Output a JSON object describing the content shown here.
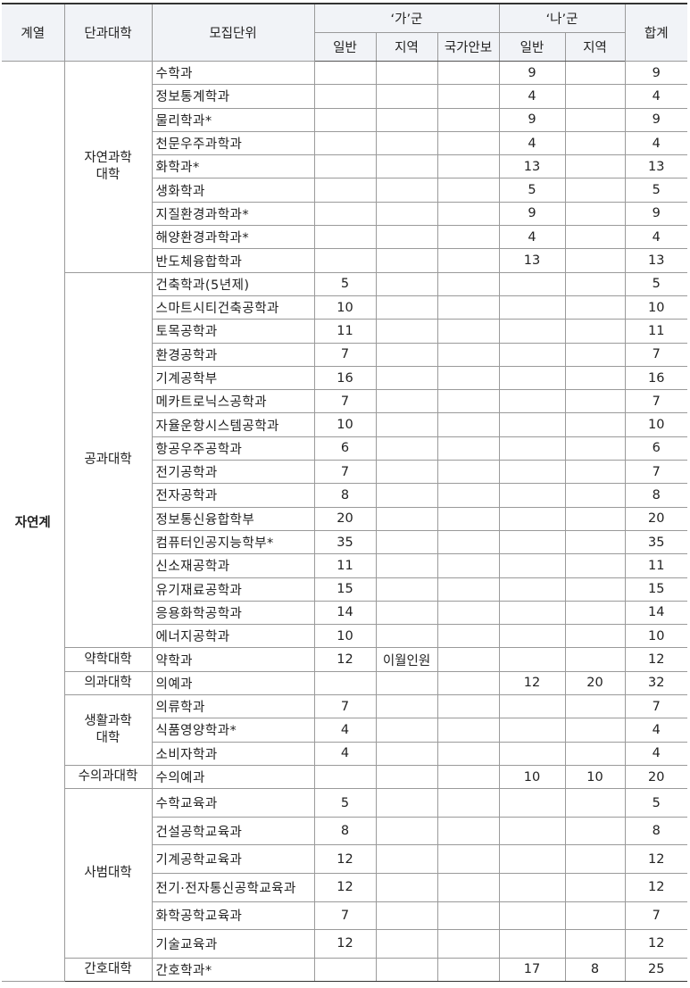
{
  "table": {
    "header": {
      "field": "계열",
      "college": "단과대학",
      "unit": "모집단위",
      "ga": "‘가’군",
      "na": "‘나’군",
      "ga_general": "일반",
      "ga_region": "지역",
      "ga_security": "국가안보",
      "na_general": "일반",
      "na_region": "지역",
      "total": "합계"
    },
    "field": "자연계",
    "groups": [
      {
        "college": "자연과학\n대학",
        "units": [
          {
            "unit": "수학과",
            "na_general": 9,
            "total": 9
          },
          {
            "unit": "정보통계학과",
            "na_general": 4,
            "total": 4
          },
          {
            "unit": "물리학과*",
            "na_general": 9,
            "total": 9
          },
          {
            "unit": "천문우주과학과",
            "na_general": 4,
            "total": 4
          },
          {
            "unit": "화학과*",
            "na_general": 13,
            "total": 13
          },
          {
            "unit": "생화학과",
            "na_general": 5,
            "total": 5
          },
          {
            "unit": "지질환경과학과*",
            "na_general": 9,
            "total": 9
          },
          {
            "unit": "해양환경과학과*",
            "na_general": 4,
            "total": 4
          },
          {
            "unit": "반도체융합학과",
            "na_general": 13,
            "total": 13
          }
        ]
      },
      {
        "college": "공과대학",
        "units": [
          {
            "unit": "건축학과(5년제)",
            "ga_general": 5,
            "total": 5
          },
          {
            "unit": "스마트시티건축공학과",
            "ga_general": 10,
            "total": 10
          },
          {
            "unit": "토목공학과",
            "ga_general": 11,
            "total": 11
          },
          {
            "unit": "환경공학과",
            "ga_general": 7,
            "total": 7
          },
          {
            "unit": "기계공학부",
            "ga_general": 16,
            "total": 16
          },
          {
            "unit": "메카트로닉스공학과",
            "ga_general": 7,
            "total": 7
          },
          {
            "unit": "자율운항시스템공학과",
            "ga_general": 10,
            "total": 10
          },
          {
            "unit": "항공우주공학과",
            "ga_general": 6,
            "total": 6
          },
          {
            "unit": "전기공학과",
            "ga_general": 7,
            "total": 7
          },
          {
            "unit": "전자공학과",
            "ga_general": 8,
            "total": 8
          },
          {
            "unit": "정보통신융합학부",
            "ga_general": 20,
            "total": 20
          },
          {
            "unit": "컴퓨터인공지능학부*",
            "ga_general": 35,
            "total": 35
          },
          {
            "unit": "신소재공학과",
            "ga_general": 11,
            "total": 11
          },
          {
            "unit": "유기재료공학과",
            "ga_general": 15,
            "total": 15
          },
          {
            "unit": "응용화학공학과",
            "ga_general": 14,
            "total": 14
          },
          {
            "unit": "에너지공학과",
            "ga_general": 10,
            "total": 10
          }
        ]
      },
      {
        "college": "약학대학",
        "units": [
          {
            "unit": "약학과",
            "ga_general": 12,
            "ga_region": "이월인원",
            "total": 12
          }
        ]
      },
      {
        "college": "의과대학",
        "units": [
          {
            "unit": "의예과",
            "na_general": 12,
            "na_region": 20,
            "total": 32
          }
        ]
      },
      {
        "college": "생활과학\n대학",
        "units": [
          {
            "unit": "의류학과",
            "ga_general": 7,
            "total": 7
          },
          {
            "unit": "식품영양학과*",
            "ga_general": 4,
            "total": 4
          },
          {
            "unit": "소비자학과",
            "ga_general": 4,
            "total": 4
          }
        ]
      },
      {
        "college": "수의과대학",
        "units": [
          {
            "unit": "수의예과",
            "na_general": 10,
            "na_region": 10,
            "total": 20
          }
        ]
      },
      {
        "college": "사범대학",
        "units": [
          {
            "unit": "수학교육과",
            "ga_general": 5,
            "total": 5
          },
          {
            "unit": "건설공학교육과",
            "ga_general": 8,
            "total": 8
          },
          {
            "unit": "기계공학교육과",
            "ga_general": 12,
            "total": 12
          },
          {
            "unit": "전기·전자통신공학교육과",
            "ga_general": 12,
            "total": 12
          },
          {
            "unit": "화학공학교육과",
            "ga_general": 7,
            "total": 7
          },
          {
            "unit": "기술교육과",
            "ga_general": 12,
            "total": 12
          }
        ]
      },
      {
        "college": "간호대학",
        "units": [
          {
            "unit": "간호학과*",
            "na_general": 17,
            "na_region": 8,
            "total": 25
          }
        ]
      }
    ]
  }
}
